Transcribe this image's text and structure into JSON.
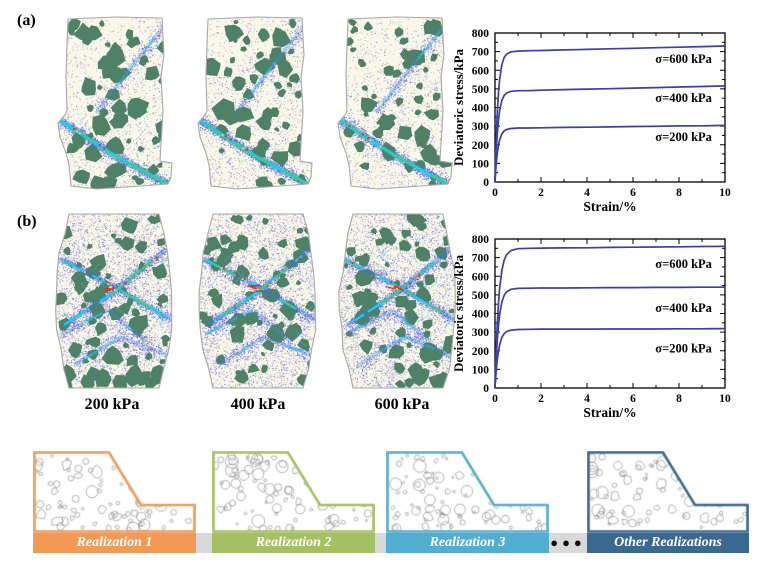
{
  "figure": {
    "panels": [
      {
        "label": "(a)"
      },
      {
        "label": "(b)"
      }
    ],
    "column_labels": [
      "200 kPa",
      "400 kPa",
      "600 kPa"
    ],
    "specimen_palette": {
      "matrix_background": "#f9f7e8",
      "particle_speckle": "#5757d2",
      "rock_blocks": "#4e8166",
      "shear_band": "#20cbe8",
      "band_glow": "#2d7de8",
      "band_hotspot_green": "#3ed357",
      "band_hotspot_red": "#e03226",
      "band_hotspot_yellow": "#f2e23c",
      "outline": "#a8a8a8"
    }
  },
  "chart_data": [
    {
      "type": "line",
      "title": "",
      "xlabel": "Strain/%",
      "ylabel": "Deviatoric stress/kPa",
      "xlim": [
        0,
        10
      ],
      "ylim": [
        0,
        800
      ],
      "xticks": [
        0,
        2,
        4,
        6,
        8,
        10
      ],
      "yticks": [
        0,
        100,
        200,
        300,
        400,
        500,
        600,
        700,
        800
      ],
      "x_minor_step": 1,
      "y_minor_step": 50,
      "grid": false,
      "legend_position": "none",
      "line_color": "#3a3eb0",
      "series": [
        {
          "name": "σ=600 kPa",
          "annotation_xy": [
            8.2,
            660
          ],
          "x": [
            0,
            0.05,
            0.1,
            0.15,
            0.2,
            0.3,
            0.4,
            0.5,
            0.7,
            1,
            1.5,
            2,
            3,
            4,
            5,
            6,
            7,
            8,
            9,
            10
          ],
          "y": [
            0,
            224,
            376,
            480,
            550,
            631,
            669,
            686,
            699,
            703,
            705,
            706,
            709,
            712,
            715,
            718,
            721,
            724,
            727,
            730
          ]
        },
        {
          "name": "σ=400 kPa",
          "annotation_xy": [
            8.2,
            450
          ],
          "x": [
            0,
            0.05,
            0.1,
            0.15,
            0.2,
            0.3,
            0.4,
            0.5,
            0.7,
            1,
            1.5,
            2,
            3,
            4,
            5,
            6,
            7,
            8,
            9,
            10
          ],
          "y": [
            0,
            156,
            261,
            333,
            383,
            439,
            465,
            478,
            487,
            490,
            491,
            493,
            496,
            499,
            501,
            504,
            507,
            510,
            513,
            516
          ]
        },
        {
          "name": "σ=200 kPa",
          "annotation_xy": [
            8.2,
            242
          ],
          "x": [
            0,
            0.05,
            0.1,
            0.15,
            0.2,
            0.3,
            0.4,
            0.5,
            0.7,
            1,
            1.5,
            2,
            3,
            4,
            5,
            6,
            7,
            8,
            9,
            10
          ],
          "y": [
            0,
            92,
            155,
            197,
            226,
            259,
            275,
            282,
            287,
            290,
            290,
            291,
            293,
            294,
            296,
            298,
            299,
            301,
            302,
            304
          ]
        }
      ]
    },
    {
      "type": "line",
      "title": "",
      "xlabel": "Strain/%",
      "ylabel": "Deviatoric stress/kPa",
      "xlim": [
        0,
        10
      ],
      "ylim": [
        0,
        800
      ],
      "xticks": [
        0,
        2,
        4,
        6,
        8,
        10
      ],
      "yticks": [
        0,
        100,
        200,
        300,
        400,
        500,
        600,
        700,
        800
      ],
      "x_minor_step": 1,
      "y_minor_step": 50,
      "grid": false,
      "legend_position": "none",
      "line_color": "#3a3eb0",
      "series": [
        {
          "name": "σ=600 kPa",
          "annotation_xy": [
            8.2,
            665
          ],
          "x": [
            0,
            0.05,
            0.1,
            0.15,
            0.2,
            0.3,
            0.4,
            0.5,
            0.7,
            1,
            1.5,
            2,
            3,
            4,
            5,
            6,
            7,
            8,
            9,
            10
          ],
          "y": [
            0,
            201,
            348,
            455,
            534,
            633,
            687,
            715,
            739,
            748,
            750,
            751,
            752,
            753,
            755,
            756,
            757,
            758,
            760,
            761
          ]
        },
        {
          "name": "σ=400 kPa",
          "annotation_xy": [
            8.2,
            430
          ],
          "x": [
            0,
            0.05,
            0.1,
            0.15,
            0.2,
            0.3,
            0.4,
            0.5,
            0.7,
            1,
            1.5,
            2,
            3,
            4,
            5,
            6,
            7,
            8,
            9,
            10
          ],
          "y": [
            0,
            152,
            260,
            338,
            394,
            463,
            498,
            516,
            530,
            535,
            536,
            537,
            537,
            538,
            539,
            539,
            540,
            540,
            541,
            541
          ]
        },
        {
          "name": "σ=200 kPa",
          "annotation_xy": [
            8.2,
            213
          ],
          "x": [
            0,
            0.05,
            0.1,
            0.15,
            0.2,
            0.3,
            0.4,
            0.5,
            0.7,
            1,
            1.5,
            2,
            3,
            4,
            5,
            6,
            7,
            8,
            9,
            10
          ],
          "y": [
            0,
            89,
            153,
            198,
            231,
            272,
            292,
            303,
            311,
            314,
            315,
            316,
            316,
            316,
            317,
            317,
            317,
            318,
            318,
            319
          ]
        }
      ]
    }
  ],
  "realizations": {
    "track_color": "#d9d9d9",
    "ellipsis": "●●●",
    "items": [
      {
        "label": "Realization 1",
        "color": "#f29a55"
      },
      {
        "label": "Realization 2",
        "color": "#a5c062"
      },
      {
        "label": "Realization 3",
        "color": "#52aed0"
      },
      {
        "label": "Other Realizations",
        "color": "#3a688f"
      }
    ]
  }
}
